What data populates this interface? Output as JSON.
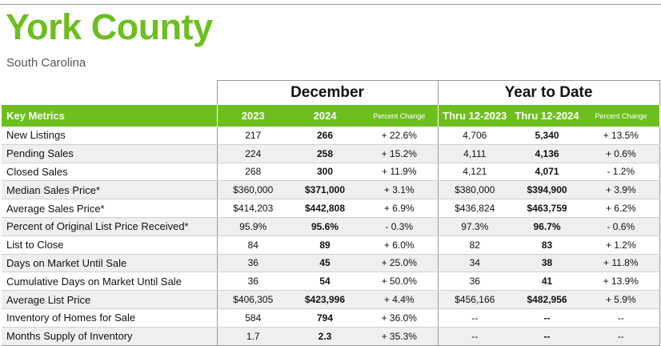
{
  "header": {
    "title": "York County",
    "subtitle": "South Carolina"
  },
  "groups": {
    "december": "December",
    "ytd": "Year to Date"
  },
  "columns": {
    "key_metrics": "Key Metrics",
    "y2023": "2023",
    "y2024": "2024",
    "pct_change": "Percent Change",
    "thru_2023": "Thru 12-2023",
    "thru_2024": "Thru 12-2024",
    "pct_change_ytd": "Percent Change"
  },
  "colors": {
    "brand_green": "#6dbf1f",
    "row_stripe": "#efefef"
  },
  "rows": [
    {
      "label": "New Listings",
      "y2023": "217",
      "y2024": "266",
      "pct": "+ 22.6%",
      "ytd2023": "4,706",
      "ytd2024": "5,340",
      "ytd_pct": "+ 13.5%"
    },
    {
      "label": "Pending Sales",
      "y2023": "224",
      "y2024": "258",
      "pct": "+ 15.2%",
      "ytd2023": "4,111",
      "ytd2024": "4,136",
      "ytd_pct": "+ 0.6%"
    },
    {
      "label": "Closed Sales",
      "y2023": "268",
      "y2024": "300",
      "pct": "+ 11.9%",
      "ytd2023": "4,121",
      "ytd2024": "4,071",
      "ytd_pct": "- 1.2%"
    },
    {
      "label": "Median Sales Price*",
      "y2023": "$360,000",
      "y2024": "$371,000",
      "pct": "+ 3.1%",
      "ytd2023": "$380,000",
      "ytd2024": "$394,900",
      "ytd_pct": "+ 3.9%"
    },
    {
      "label": "Average Sales Price*",
      "y2023": "$414,203",
      "y2024": "$442,808",
      "pct": "+ 6.9%",
      "ytd2023": "$436,824",
      "ytd2024": "$463,759",
      "ytd_pct": "+ 6.2%"
    },
    {
      "label": "Percent of Original List Price Received*",
      "y2023": "95.9%",
      "y2024": "95.6%",
      "pct": "- 0.3%",
      "ytd2023": "97.3%",
      "ytd2024": "96.7%",
      "ytd_pct": "- 0.6%"
    },
    {
      "label": "List to Close",
      "y2023": "84",
      "y2024": "89",
      "pct": "+ 6.0%",
      "ytd2023": "82",
      "ytd2024": "83",
      "ytd_pct": "+ 1.2%"
    },
    {
      "label": "Days on Market Until Sale",
      "y2023": "36",
      "y2024": "45",
      "pct": "+ 25.0%",
      "ytd2023": "34",
      "ytd2024": "38",
      "ytd_pct": "+ 11.8%"
    },
    {
      "label": "Cumulative Days on Market Until Sale",
      "y2023": "36",
      "y2024": "54",
      "pct": "+ 50.0%",
      "ytd2023": "36",
      "ytd2024": "41",
      "ytd_pct": "+ 13.9%"
    },
    {
      "label": "Average List Price",
      "y2023": "$406,305",
      "y2024": "$423,996",
      "pct": "+ 4.4%",
      "ytd2023": "$456,166",
      "ytd2024": "$482,956",
      "ytd_pct": "+ 5.9%"
    },
    {
      "label": "Inventory of Homes for Sale",
      "y2023": "584",
      "y2024": "794",
      "pct": "+ 36.0%",
      "ytd2023": "--",
      "ytd2024": "--",
      "ytd_pct": "--"
    },
    {
      "label": "Months Supply of Inventory",
      "y2023": "1.7",
      "y2024": "2.3",
      "pct": "+ 35.3%",
      "ytd2023": "--",
      "ytd2024": "--",
      "ytd_pct": "--"
    }
  ]
}
